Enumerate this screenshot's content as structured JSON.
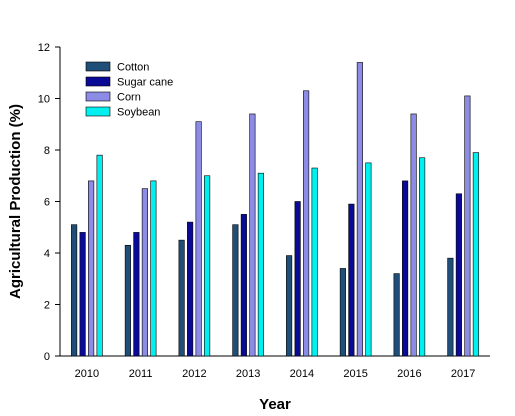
{
  "chart_data": {
    "type": "bar",
    "title": "",
    "xlabel": "Year",
    "ylabel": "Agricultural Production (%)",
    "categories": [
      "2010",
      "2011",
      "2012",
      "2013",
      "2014",
      "2015",
      "2016",
      "2017"
    ],
    "ylim": [
      0,
      12
    ],
    "yticks": [
      "0",
      "2",
      "4",
      "6",
      "8",
      "10",
      "12"
    ],
    "grid": false,
    "legend_position": "top-left",
    "series": [
      {
        "name": "Cotton",
        "color": "#1f4e79",
        "values": [
          5.1,
          4.3,
          4.5,
          5.1,
          3.9,
          3.4,
          3.2,
          3.8
        ]
      },
      {
        "name": "Sugar cane",
        "color": "#0a0a96",
        "values": [
          4.8,
          4.8,
          5.2,
          5.5,
          6.0,
          5.9,
          6.8,
          6.3
        ]
      },
      {
        "name": "Corn",
        "color": "#8c8ce6",
        "values": [
          6.8,
          6.5,
          9.1,
          9.4,
          10.3,
          11.4,
          9.4,
          10.1
        ]
      },
      {
        "name": "Soybean",
        "color": "#00f0f0",
        "values": [
          7.8,
          6.8,
          7.0,
          7.1,
          7.3,
          7.5,
          7.7,
          7.9
        ]
      }
    ]
  }
}
